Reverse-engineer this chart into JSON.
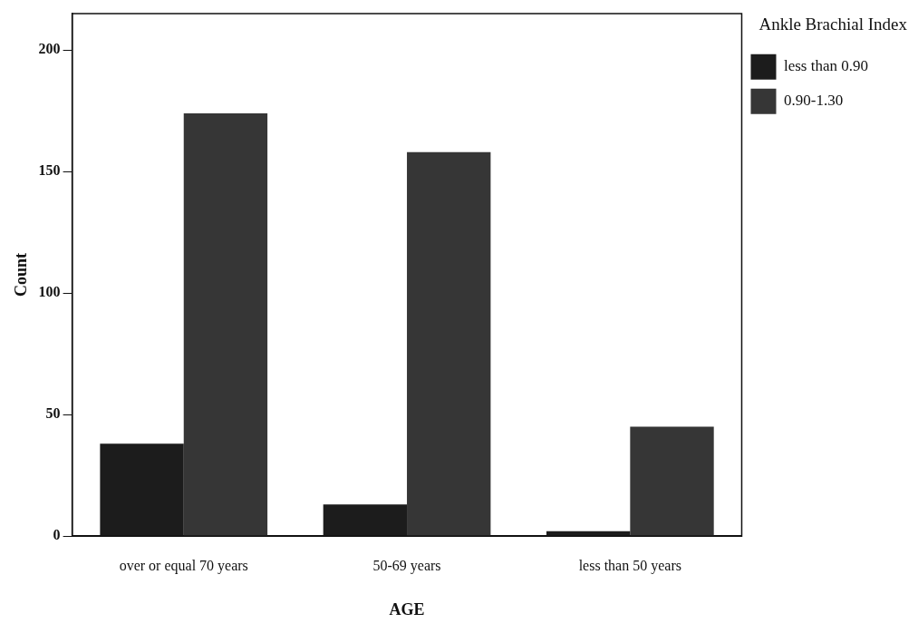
{
  "chart_data": {
    "type": "bar",
    "xlabel": "AGE",
    "ylabel": "Count",
    "legend_title": "Ankle Brachial Index",
    "categories": [
      "over or equal 70 years",
      "50-69 years",
      "less than 50 years"
    ],
    "series": [
      {
        "name": "less than 0.90",
        "color": "#1c1c1c",
        "values": [
          38,
          13,
          2
        ]
      },
      {
        "name": "0.90-1.30",
        "color": "#363636",
        "values": [
          174,
          158,
          45
        ]
      }
    ],
    "ylim": [
      0,
      215
    ],
    "yticks": [
      0,
      50,
      100,
      150,
      200
    ],
    "grid": false,
    "legend": "top right"
  }
}
